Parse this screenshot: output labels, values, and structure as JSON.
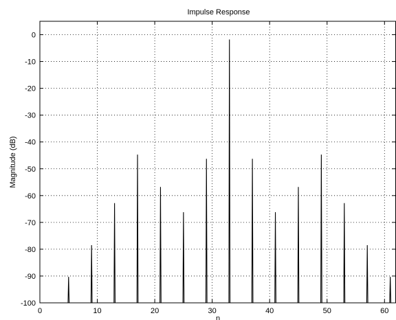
{
  "chart_data": {
    "type": "line",
    "title": "Impulse Response",
    "xlabel": "n",
    "ylabel": "Magnitude (dB)",
    "xlim": [
      0,
      62
    ],
    "ylim": [
      -100,
      5
    ],
    "xticks": [
      0,
      10,
      20,
      30,
      40,
      50,
      60
    ],
    "yticks": [
      0,
      -10,
      -20,
      -30,
      -40,
      -50,
      -60,
      -70,
      -80,
      -90,
      -100
    ],
    "grid": true,
    "series": [
      {
        "x": [
          5,
          9,
          13,
          17,
          21,
          25,
          29,
          33,
          37,
          41,
          45,
          49,
          53,
          57,
          61
        ],
        "values": [
          -90.3,
          -78.5,
          -62.8,
          -44.7,
          -56.8,
          -66.2,
          -46.3,
          -1.8,
          -46.3,
          -66.2,
          -56.8,
          -44.7,
          -62.8,
          -78.5,
          -90.3
        ]
      }
    ]
  }
}
